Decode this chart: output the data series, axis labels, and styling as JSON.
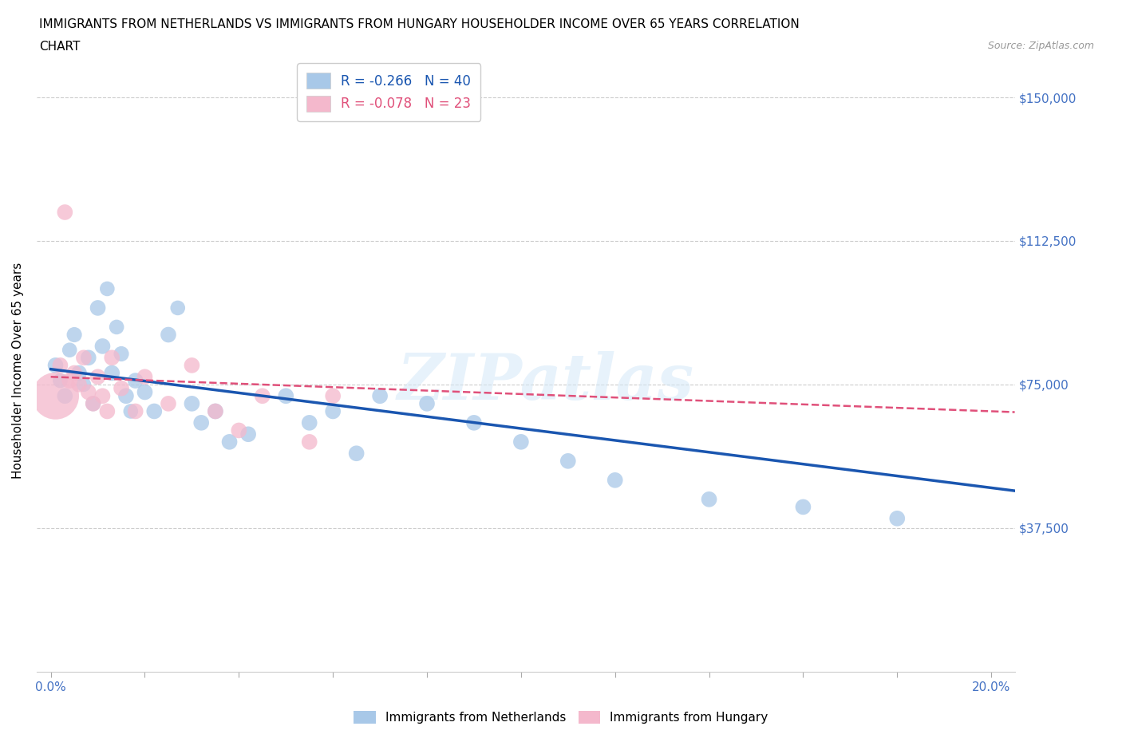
{
  "title_line1": "IMMIGRANTS FROM NETHERLANDS VS IMMIGRANTS FROM HUNGARY HOUSEHOLDER INCOME OVER 65 YEARS CORRELATION",
  "title_line2": "CHART",
  "source": "Source: ZipAtlas.com",
  "ylabel": "Householder Income Over 65 years",
  "xlim": [
    0,
    0.2
  ],
  "ylim": [
    0,
    157500
  ],
  "yticks": [
    0,
    37500,
    75000,
    112500,
    150000
  ],
  "ytick_labels": [
    "",
    "$37,500",
    "$75,000",
    "$112,500",
    "$150,000"
  ],
  "watermark": "ZIPatlas",
  "netherlands_R": -0.266,
  "netherlands_N": 40,
  "hungary_R": -0.078,
  "hungary_N": 23,
  "netherlands_color": "#a8c8e8",
  "hungary_color": "#f4b8cc",
  "netherlands_line_color": "#1a56b0",
  "hungary_line_color": "#e0507a",
  "netherlands_x": [
    0.001,
    0.002,
    0.003,
    0.004,
    0.005,
    0.006,
    0.007,
    0.008,
    0.009,
    0.01,
    0.011,
    0.012,
    0.013,
    0.014,
    0.015,
    0.016,
    0.017,
    0.018,
    0.02,
    0.022,
    0.025,
    0.027,
    0.03,
    0.032,
    0.035,
    0.038,
    0.042,
    0.05,
    0.055,
    0.06,
    0.065,
    0.07,
    0.08,
    0.09,
    0.1,
    0.11,
    0.12,
    0.14,
    0.16,
    0.18
  ],
  "netherlands_y": [
    80000,
    76000,
    72000,
    84000,
    88000,
    78000,
    75000,
    82000,
    70000,
    95000,
    85000,
    100000,
    78000,
    90000,
    83000,
    72000,
    68000,
    76000,
    73000,
    68000,
    88000,
    95000,
    70000,
    65000,
    68000,
    60000,
    62000,
    72000,
    65000,
    68000,
    57000,
    72000,
    70000,
    65000,
    60000,
    55000,
    50000,
    45000,
    43000,
    40000
  ],
  "hungary_x": [
    0.001,
    0.002,
    0.003,
    0.004,
    0.005,
    0.006,
    0.007,
    0.008,
    0.009,
    0.01,
    0.011,
    0.012,
    0.013,
    0.015,
    0.018,
    0.02,
    0.025,
    0.03,
    0.035,
    0.04,
    0.045,
    0.055,
    0.06
  ],
  "hungary_y": [
    72000,
    80000,
    120000,
    76000,
    78000,
    75000,
    82000,
    73000,
    70000,
    77000,
    72000,
    68000,
    82000,
    74000,
    68000,
    77000,
    70000,
    80000,
    68000,
    63000,
    72000,
    60000,
    72000
  ],
  "netherlands_size": [
    200,
    180,
    200,
    180,
    190,
    200,
    180,
    200,
    190,
    200,
    200,
    180,
    200,
    180,
    190,
    200,
    180,
    200,
    200,
    200,
    200,
    180,
    200,
    200,
    200,
    200,
    200,
    200,
    200,
    200,
    200,
    200,
    200,
    200,
    200,
    200,
    200,
    200,
    200,
    200
  ],
  "hungary_size": [
    1800,
    200,
    200,
    200,
    200,
    200,
    200,
    200,
    200,
    200,
    200,
    200,
    200,
    200,
    200,
    200,
    200,
    200,
    200,
    200,
    200,
    200,
    200
  ],
  "background_color": "#ffffff",
  "grid_color": "#cccccc",
  "tick_color": "#4472c4",
  "title_fontsize": 11,
  "axis_label_fontsize": 11,
  "tick_fontsize": 11
}
